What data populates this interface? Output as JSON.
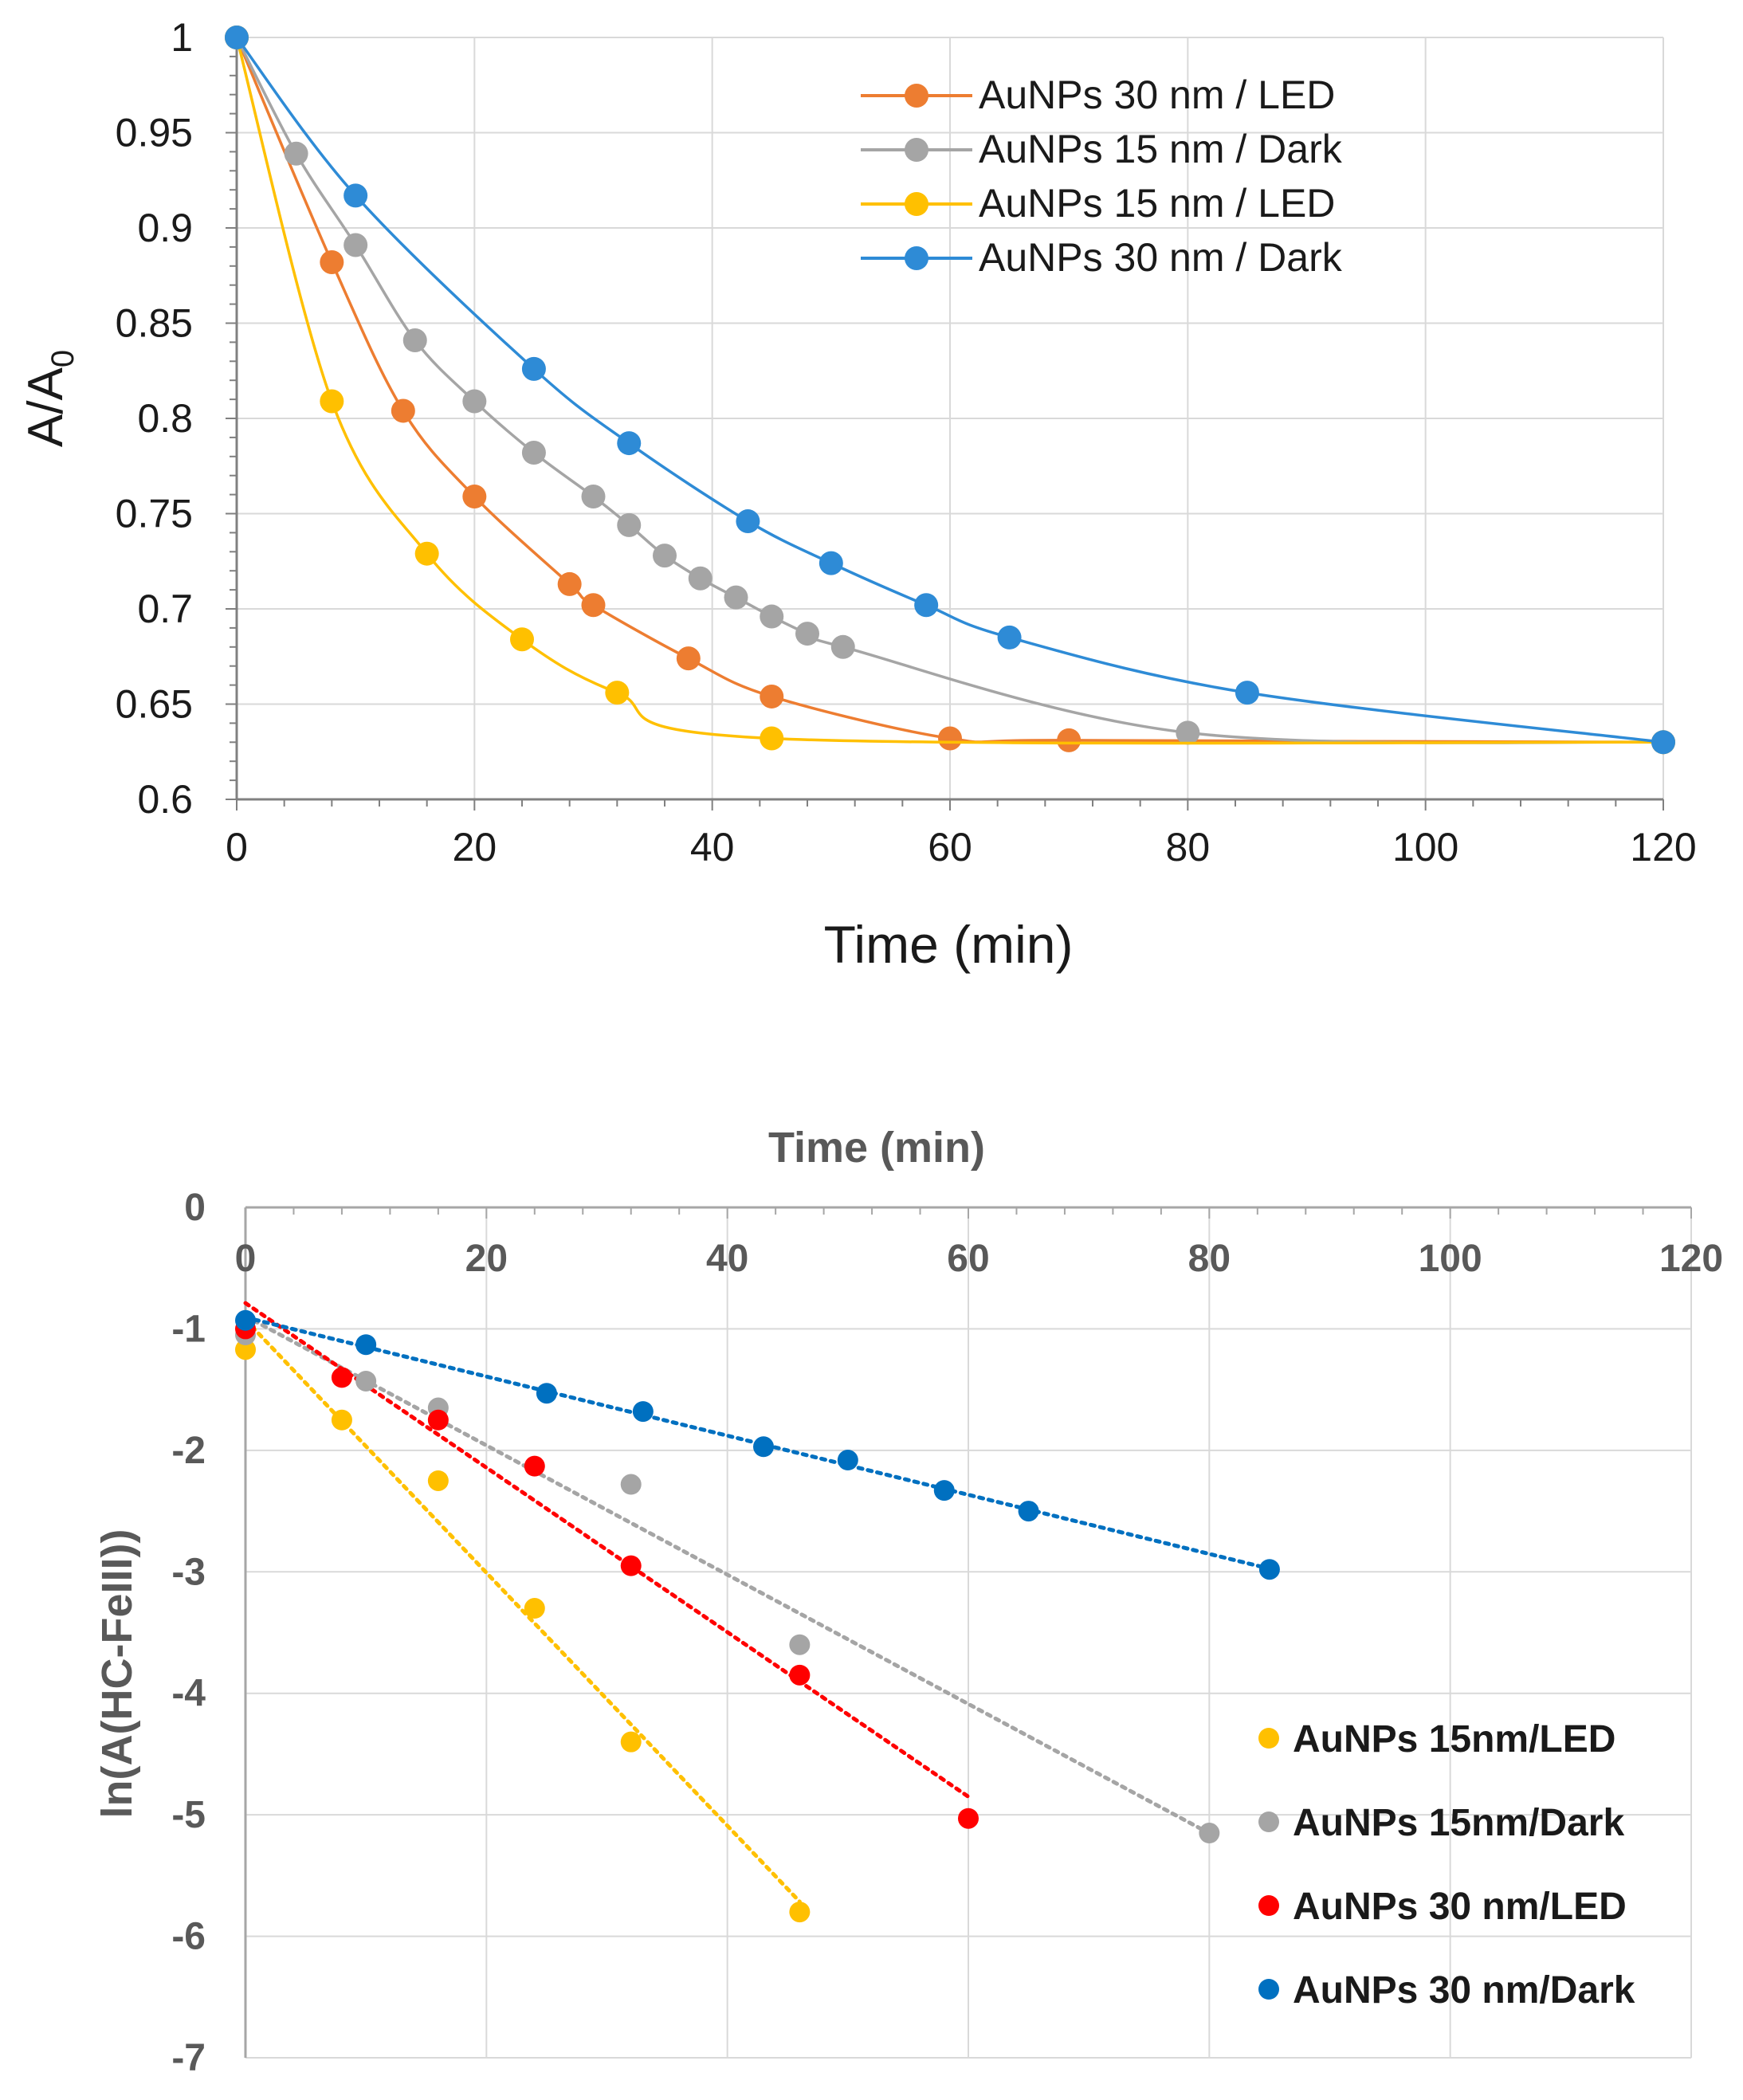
{
  "chart_data": [
    {
      "type": "line",
      "title": "",
      "xlabel": "Time (min)",
      "ylabel": "A/A",
      "ylabel_subscript": "0",
      "xlim": [
        0,
        120
      ],
      "ylim": [
        0.6,
        1
      ],
      "xticks": [
        "0",
        "20",
        "40",
        "60",
        "80",
        "100",
        "120"
      ],
      "yticks": [
        "0.6",
        "0.65",
        "0.7",
        "0.75",
        "0.8",
        "0.85",
        "0.9",
        "0.95",
        "1"
      ],
      "grid": true,
      "legend_position": "top-right",
      "series": [
        {
          "name": "AuNPs 30 nm / LED",
          "color": "#ED7D31",
          "x": [
            0,
            8,
            14,
            20,
            28,
            30,
            38,
            45,
            60,
            70,
            120
          ],
          "y": [
            1,
            0.882,
            0.804,
            0.759,
            0.713,
            0.702,
            0.674,
            0.654,
            0.632,
            0.631,
            0.63
          ]
        },
        {
          "name": "AuNPs 15 nm / Dark",
          "color": "#A5A5A5",
          "x": [
            0,
            5,
            10,
            15,
            20,
            25,
            30,
            33,
            36,
            39,
            42,
            45,
            48,
            51,
            80,
            120
          ],
          "y": [
            1,
            0.939,
            0.891,
            0.841,
            0.809,
            0.782,
            0.759,
            0.744,
            0.728,
            0.716,
            0.706,
            0.696,
            0.687,
            0.68,
            0.635,
            0.63
          ]
        },
        {
          "name": "AuNPs 15 nm / LED",
          "color": "#FFC000",
          "x": [
            0,
            8,
            16,
            24,
            32,
            45,
            120
          ],
          "y": [
            1,
            0.809,
            0.729,
            0.684,
            0.656,
            0.632,
            0.63
          ]
        },
        {
          "name": "AuNPs 30 nm / Dark",
          "color": "#2E8BD6",
          "x": [
            0,
            10,
            25,
            33,
            43,
            50,
            58,
            65,
            85,
            120
          ],
          "y": [
            1,
            0.917,
            0.826,
            0.787,
            0.746,
            0.724,
            0.702,
            0.685,
            0.656,
            0.63
          ]
        }
      ]
    },
    {
      "type": "scatter",
      "title": "",
      "xlabel": "Time (min)",
      "ylabel": "ln(A(HC-FeIII))",
      "xlim": [
        0,
        120
      ],
      "ylim": [
        -7,
        0
      ],
      "xticks": [
        "0",
        "20",
        "40",
        "60",
        "80",
        "100",
        "120"
      ],
      "yticks": [
        "0",
        "-1",
        "-2",
        "-3",
        "-4",
        "-5",
        "-6",
        "-7"
      ],
      "grid": true,
      "legend_position": "bottom-right",
      "trendline": "linear, dotted",
      "series": [
        {
          "name": "AuNPs 15nm/LED",
          "color": "#FFC000",
          "x": [
            0,
            8,
            16,
            24,
            32,
            46
          ],
          "y": [
            -1.17,
            -1.75,
            -2.25,
            -3.3,
            -4.4,
            -5.8
          ]
        },
        {
          "name": "AuNPs 15nm/Dark",
          "color": "#A5A5A5",
          "x": [
            0,
            10,
            16,
            32,
            46,
            80
          ],
          "y": [
            -1.05,
            -1.43,
            -1.65,
            -2.28,
            -3.6,
            -5.15
          ]
        },
        {
          "name": "AuNPs 30 nm/LED",
          "color": "#FF0000",
          "x": [
            0,
            8,
            16,
            24,
            32,
            46,
            60
          ],
          "y": [
            -1.0,
            -1.4,
            -1.75,
            -2.13,
            -2.95,
            -3.85,
            -5.03
          ]
        },
        {
          "name": "AuNPs 30 nm/Dark",
          "color": "#0070C0",
          "x": [
            0,
            10,
            25,
            33,
            43,
            50,
            58,
            65,
            85
          ],
          "y": [
            -0.93,
            -1.13,
            -1.53,
            -1.68,
            -1.97,
            -2.08,
            -2.33,
            -2.5,
            -2.98
          ]
        }
      ]
    }
  ]
}
